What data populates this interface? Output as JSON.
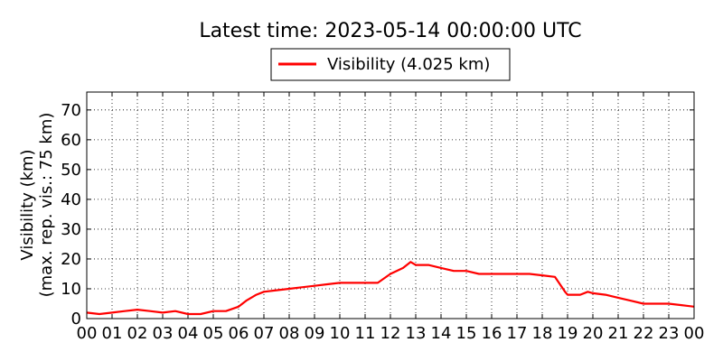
{
  "chart_data": {
    "type": "line",
    "title": "Latest time: 2023-05-14 00:00:00 UTC",
    "ylabel_line1": "Visibility (km)",
    "ylabel_line2": "(max. rep. vis.: 75 km)",
    "xlabel": "",
    "ylim": [
      0,
      75
    ],
    "xlim": [
      0,
      24
    ],
    "grid": true,
    "legend_position": "top-center",
    "x_ticks": [
      "00",
      "01",
      "02",
      "03",
      "04",
      "05",
      "06",
      "07",
      "08",
      "09",
      "10",
      "11",
      "12",
      "13",
      "14",
      "15",
      "16",
      "17",
      "18",
      "19",
      "20",
      "21",
      "22",
      "23",
      "00"
    ],
    "y_ticks": [
      "0",
      "10",
      "20",
      "30",
      "40",
      "50",
      "60",
      "70"
    ],
    "series": [
      {
        "name": "Visibility (4.025 km)",
        "color": "#ff0000",
        "x": [
          0,
          0.5,
          1,
          1.5,
          2,
          2.5,
          3,
          3.5,
          4,
          4.5,
          5,
          5.5,
          6,
          6.3,
          6.7,
          7,
          7.5,
          8,
          8.5,
          9,
          9.5,
          10,
          10.5,
          11,
          11.5,
          12,
          12.5,
          12.8,
          13,
          13.5,
          14,
          14.5,
          15,
          15.5,
          16,
          16.5,
          17,
          17.5,
          18,
          18.5,
          18.9,
          19,
          19.5,
          19.8,
          20,
          20.5,
          21,
          21.5,
          22,
          22.5,
          23,
          23.5,
          24
        ],
        "y": [
          2,
          1.5,
          2,
          2.5,
          3,
          2.5,
          2,
          2.5,
          1.5,
          1.5,
          2.5,
          2.5,
          4,
          6,
          8,
          9,
          9.5,
          10,
          10.5,
          11,
          11.5,
          12,
          12,
          12,
          12,
          15,
          17,
          19,
          18,
          18,
          17,
          16,
          16,
          15,
          15,
          15,
          15,
          15,
          14.5,
          14,
          9,
          8,
          8,
          9,
          8.5,
          8,
          7,
          6,
          5,
          5,
          5,
          4.5,
          4
        ]
      }
    ]
  }
}
